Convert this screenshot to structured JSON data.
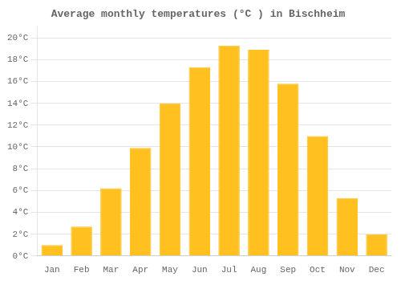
{
  "chart_data": {
    "type": "bar",
    "title": "Average monthly temperatures (°C ) in Bischheim",
    "categories": [
      "Jan",
      "Feb",
      "Mar",
      "Apr",
      "May",
      "Jun",
      "Jul",
      "Aug",
      "Sep",
      "Oct",
      "Nov",
      "Dec"
    ],
    "values": [
      1.0,
      2.7,
      6.2,
      9.9,
      14.0,
      17.3,
      19.3,
      18.9,
      15.8,
      11.0,
      5.3,
      2.0
    ],
    "color": "#FFC020",
    "ylim": [
      0,
      21
    ],
    "yticks": [
      {
        "value": 0,
        "label": "0°C"
      },
      {
        "value": 2,
        "label": "2°C"
      },
      {
        "value": 4,
        "label": "4°C"
      },
      {
        "value": 6,
        "label": "6°C"
      },
      {
        "value": 8,
        "label": "8°C"
      },
      {
        "value": 10,
        "label": "10°C"
      },
      {
        "value": 12,
        "label": "12°C"
      },
      {
        "value": 14,
        "label": "14°C"
      },
      {
        "value": 16,
        "label": "16°C"
      },
      {
        "value": 18,
        "label": "18°C"
      },
      {
        "value": 20,
        "label": "20°C"
      }
    ],
    "grid": true
  }
}
